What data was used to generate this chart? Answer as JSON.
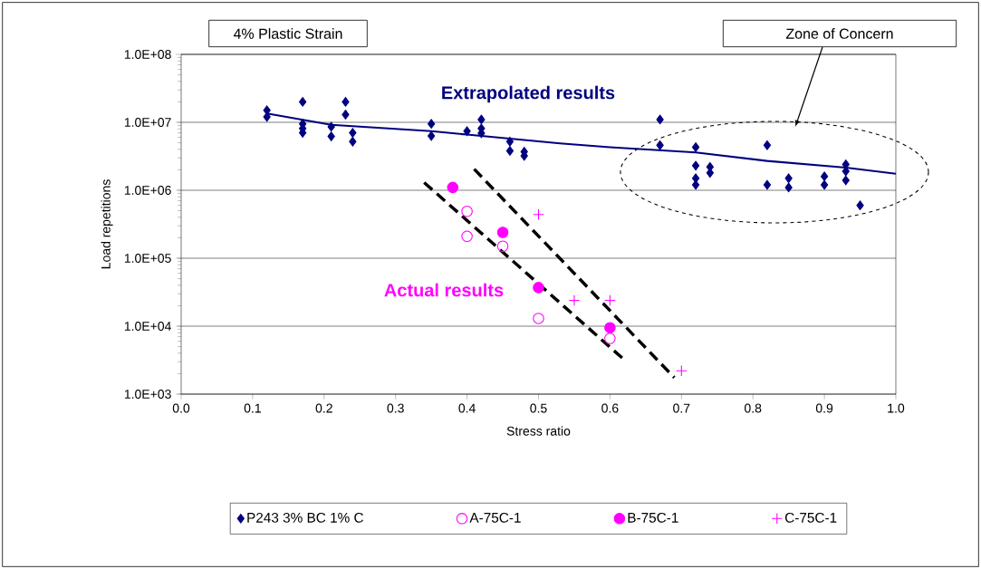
{
  "chart_data": {
    "type": "scatter",
    "xlabel": "Stress ratio",
    "ylabel": "Load repetitions",
    "annotations": [
      "4% Plastic Strain",
      "Zone of Concern",
      "Extrapolated results",
      "Actual results"
    ],
    "xlim": [
      0,
      1
    ],
    "ylim": [
      1000,
      100000000
    ],
    "log": "y",
    "grid": "y",
    "legend": "bottom",
    "xticks": [
      {
        "value": 0,
        "label": "0.0"
      },
      {
        "value": 0.1,
        "label": "0.1"
      },
      {
        "value": 0.2,
        "label": "0.2"
      },
      {
        "value": 0.3,
        "label": "0.3"
      },
      {
        "value": 0.4,
        "label": "0.4"
      },
      {
        "value": 0.5,
        "label": "0.5"
      },
      {
        "value": 0.6,
        "label": "0.6"
      },
      {
        "value": 0.7,
        "label": "0.7"
      },
      {
        "value": 0.8,
        "label": "0.8"
      },
      {
        "value": 0.9,
        "label": "0.9"
      },
      {
        "value": 1,
        "label": "1.0"
      }
    ],
    "yticks": [
      {
        "value": 1000,
        "label": "1.0E+03"
      },
      {
        "value": 10000,
        "label": "1.0E+04"
      },
      {
        "value": 100000,
        "label": "1.0E+05"
      },
      {
        "value": 1000000,
        "label": "1.0E+06"
      },
      {
        "value": 10000000,
        "label": "1.0E+07"
      },
      {
        "value": 100000000,
        "label": "1.0E+08"
      }
    ],
    "series": [
      {
        "name": "P243 3% BC 1% C",
        "color": "#000080",
        "marker": "diamond",
        "x": [
          0.12,
          0.12,
          0.17,
          0.17,
          0.17,
          0.17,
          0.21,
          0.21,
          0.23,
          0.23,
          0.24,
          0.24,
          0.35,
          0.35,
          0.4,
          0.42,
          0.42,
          0.42,
          0.46,
          0.46,
          0.48,
          0.48,
          0.67,
          0.67,
          0.72,
          0.72,
          0.72,
          0.72,
          0.74,
          0.74,
          0.82,
          0.82,
          0.85,
          0.85,
          0.9,
          0.9,
          0.93,
          0.93,
          0.93,
          0.95
        ],
        "values": [
          15000000,
          12000000,
          20000000,
          9500000,
          8100000,
          7000000,
          8600000,
          6200000,
          20000000,
          13000000,
          7000000,
          5200000,
          9500000,
          6300000,
          7400000,
          11000000,
          8100000,
          6900000,
          5200000,
          3800000,
          3700000,
          3200000,
          11000000,
          4600000,
          4300000,
          2300000,
          1500000,
          1200000,
          2200000,
          1800000,
          4600000,
          1200000,
          1500000,
          1100000,
          1600000,
          1200000,
          2400000,
          1900000,
          1400000,
          600000
        ]
      },
      {
        "name": "A-75C-1",
        "color": "#ff00ff",
        "marker": "circle-open",
        "x": [
          0.4,
          0.4,
          0.45,
          0.5,
          0.6
        ],
        "values": [
          490000,
          210000,
          150000,
          13000,
          6600
        ]
      },
      {
        "name": "B-75C-1",
        "color": "#ff00ff",
        "marker": "circle",
        "x": [
          0.38,
          0.45,
          0.5,
          0.6
        ],
        "values": [
          1100000,
          240000,
          37000,
          9500
        ]
      },
      {
        "name": "C-75C-1",
        "color": "#ff00ff",
        "marker": "cross",
        "x": [
          0.5,
          0.55,
          0.6,
          0.7
        ],
        "values": [
          440000,
          24000,
          24000,
          2200
        ]
      },
      {
        "type": "line",
        "color": "#000080",
        "marker": "none",
        "line_style": "solid",
        "x": [
          0.12,
          0.21,
          0.35,
          0.4,
          0.53,
          0.6,
          0.72,
          0.82,
          0.93,
          1.0
        ],
        "values": [
          13500000,
          9200000,
          7400000,
          6600000,
          4900000,
          4300000,
          3600000,
          2700000,
          2150000,
          1750000
        ]
      },
      {
        "type": "line",
        "color": "#000000",
        "marker": "none",
        "line_style": "dashed",
        "x": [
          0.34,
          0.62
        ],
        "values": [
          1300000,
          3200
        ]
      },
      {
        "type": "line",
        "color": "#000000",
        "marker": "none",
        "line_style": "dashed",
        "x": [
          0.41,
          0.69
        ],
        "values": [
          2050000,
          1750
        ]
      }
    ]
  }
}
